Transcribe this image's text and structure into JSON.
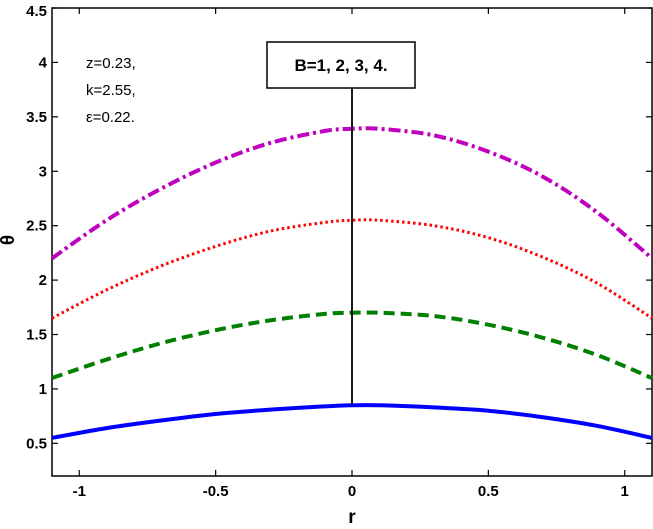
{
  "chart_data": {
    "type": "line",
    "title": "",
    "xlabel": "r",
    "ylabel": "θ",
    "xlim": [
      -1.1,
      1.1
    ],
    "ylim": [
      0.2,
      4.5
    ],
    "xticks": [
      -1,
      -0.5,
      0,
      0.5,
      1
    ],
    "xtick_labels": [
      "-1",
      "-0.5",
      "0",
      "0.5",
      "1"
    ],
    "yticks": [
      0.5,
      1,
      1.5,
      2,
      2.5,
      3,
      3.5,
      4,
      4.5
    ],
    "ytick_labels": [
      "0.5",
      "1",
      "1.5",
      "2",
      "2.5",
      "3",
      "3.5",
      "4",
      "4.5"
    ],
    "grid": false,
    "x": [
      -1.1,
      -0.9,
      -0.7,
      -0.5,
      -0.3,
      -0.1,
      0,
      0.1,
      0.3,
      0.5,
      0.7,
      0.9,
      1.1
    ],
    "series": [
      {
        "B": 1,
        "color": "#0000ff",
        "dash": "solid",
        "values": [
          0.55,
          0.64,
          0.71,
          0.77,
          0.81,
          0.84,
          0.85,
          0.85,
          0.83,
          0.8,
          0.74,
          0.66,
          0.55
        ]
      },
      {
        "B": 2,
        "color": "#007f00",
        "dash": "dashed",
        "values": [
          1.1,
          1.27,
          1.42,
          1.54,
          1.63,
          1.69,
          1.7,
          1.7,
          1.67,
          1.59,
          1.47,
          1.31,
          1.1
        ]
      },
      {
        "B": 3,
        "color": "#ff0000",
        "dash": "dotted",
        "values": [
          1.65,
          1.91,
          2.13,
          2.31,
          2.45,
          2.53,
          2.55,
          2.55,
          2.5,
          2.39,
          2.21,
          1.97,
          1.65
        ]
      },
      {
        "B": 4,
        "color": "#bf00bf",
        "dash": "dashdot",
        "values": [
          2.2,
          2.55,
          2.84,
          3.08,
          3.26,
          3.37,
          3.39,
          3.39,
          3.33,
          3.18,
          2.95,
          2.62,
          2.2
        ]
      }
    ],
    "arrow": {
      "x": 0,
      "from_y": 0.85,
      "to_y": 3.85
    },
    "annotations": {
      "box_text": "B=1, 2, 3, 4.",
      "params": [
        "z=0.23,",
        "k=2.55,",
        "ε=0.22."
      ]
    }
  }
}
